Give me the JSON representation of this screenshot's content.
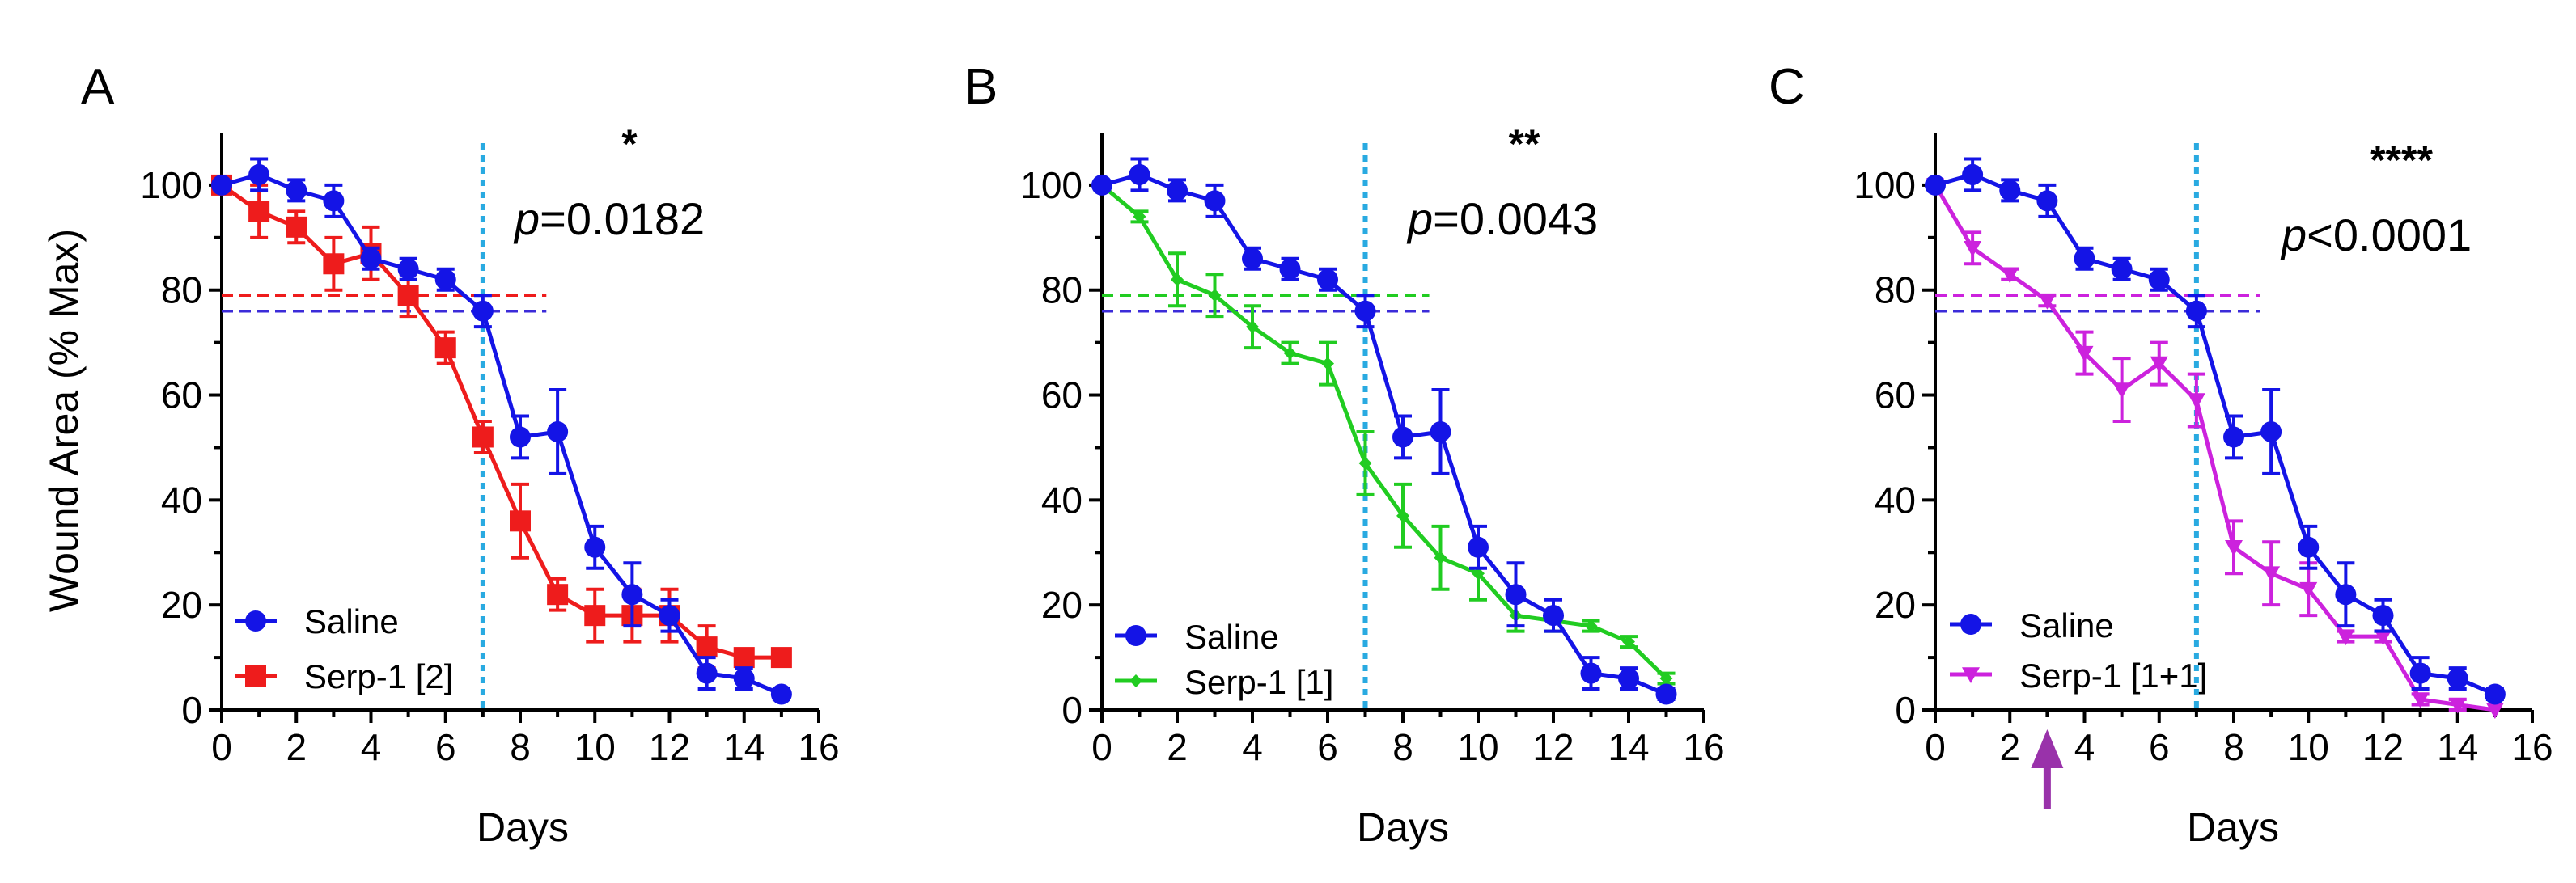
{
  "chart_data": [
    {
      "type": "line",
      "panel_label": "A",
      "xlabel": "Days",
      "ylabel": "Wound Area (% Max)",
      "xlim": [
        0,
        16
      ],
      "ylim": [
        0,
        110
      ],
      "x_ticks": [
        "0",
        "2",
        "4",
        "6",
        "8",
        "10",
        "12",
        "14",
        "16"
      ],
      "y_ticks": [
        "0",
        "20",
        "40",
        "60",
        "80",
        "100"
      ],
      "significance": "*",
      "p_prefix": "p",
      "p_value": "=0.0182",
      "vline_day": 7,
      "vline_color": "#29aae1",
      "series": [
        {
          "name": "Saline",
          "color": "#1414e6",
          "marker": "circle",
          "x": [
            0,
            1,
            2,
            3,
            4,
            5,
            6,
            7,
            8,
            9,
            10,
            11,
            12,
            13,
            14,
            15
          ],
          "values": [
            100,
            102,
            99,
            97,
            86,
            84,
            82,
            76,
            52,
            53,
            31,
            22,
            18,
            7,
            6,
            3
          ],
          "errors": [
            0,
            3,
            2,
            3,
            2,
            2,
            2,
            3,
            4,
            8,
            4,
            6,
            3,
            3,
            2,
            1
          ],
          "hline": 76
        },
        {
          "name": "Serp-1 [2]",
          "color": "#ee1c1c",
          "marker": "square",
          "x": [
            0,
            1,
            2,
            3,
            4,
            5,
            6,
            7,
            8,
            9,
            10,
            11,
            12,
            13,
            14,
            15
          ],
          "values": [
            100,
            95,
            92,
            85,
            87,
            79,
            69,
            52,
            36,
            22,
            18,
            18,
            18,
            12,
            10,
            10
          ],
          "errors": [
            0,
            5,
            3,
            5,
            5,
            4,
            3,
            3,
            7,
            3,
            5,
            5,
            5,
            4,
            1,
            1
          ],
          "hline": 79
        }
      ]
    },
    {
      "type": "line",
      "panel_label": "B",
      "xlabel": "Days",
      "ylabel": "",
      "xlim": [
        0,
        16
      ],
      "ylim": [
        0,
        110
      ],
      "x_ticks": [
        "0",
        "2",
        "4",
        "6",
        "8",
        "10",
        "12",
        "14",
        "16"
      ],
      "y_ticks": [
        "0",
        "20",
        "40",
        "60",
        "80",
        "100"
      ],
      "significance": "**",
      "p_prefix": "p",
      "p_value": "=0.0043",
      "vline_day": 7,
      "vline_color": "#29aae1",
      "series": [
        {
          "name": "Saline",
          "color": "#1414e6",
          "marker": "circle",
          "x": [
            0,
            1,
            2,
            3,
            4,
            5,
            6,
            7,
            8,
            9,
            10,
            11,
            12,
            13,
            14,
            15
          ],
          "values": [
            100,
            102,
            99,
            97,
            86,
            84,
            82,
            76,
            52,
            53,
            31,
            22,
            18,
            7,
            6,
            3
          ],
          "errors": [
            0,
            3,
            2,
            3,
            2,
            2,
            2,
            3,
            4,
            8,
            4,
            6,
            3,
            3,
            2,
            1
          ],
          "hline": 76
        },
        {
          "name": "Serp-1 [1]",
          "color": "#21cc21",
          "marker": "diamond",
          "x": [
            0,
            1,
            2,
            3,
            4,
            5,
            6,
            7,
            8,
            9,
            10,
            11,
            12,
            13,
            14,
            15
          ],
          "values": [
            100,
            94,
            82,
            79,
            73,
            68,
            66,
            47,
            37,
            29,
            26,
            18,
            17,
            16,
            13,
            6
          ],
          "errors": [
            0,
            1,
            5,
            4,
            4,
            2,
            4,
            6,
            6,
            6,
            5,
            3,
            2,
            1,
            1,
            1
          ],
          "hline": 79
        }
      ]
    },
    {
      "type": "line",
      "panel_label": "C",
      "xlabel": "Days",
      "ylabel": "",
      "xlim": [
        0,
        16
      ],
      "ylim": [
        0,
        110
      ],
      "x_ticks": [
        "0",
        "2",
        "4",
        "6",
        "8",
        "10",
        "12",
        "14",
        "16"
      ],
      "y_ticks": [
        "0",
        "20",
        "40",
        "60",
        "80",
        "100"
      ],
      "significance": "****",
      "p_prefix": "p",
      "p_value": "<0.0001",
      "vline_day": 7,
      "vline_color": "#29aae1",
      "arrow_day": 3,
      "arrow_color": "#9932aa",
      "series": [
        {
          "name": "Saline",
          "color": "#1414e6",
          "marker": "circle",
          "x": [
            0,
            1,
            2,
            3,
            4,
            5,
            6,
            7,
            8,
            9,
            10,
            11,
            12,
            13,
            14,
            15
          ],
          "values": [
            100,
            102,
            99,
            97,
            86,
            84,
            82,
            76,
            52,
            53,
            31,
            22,
            18,
            7,
            6,
            3
          ],
          "errors": [
            0,
            3,
            2,
            3,
            2,
            2,
            2,
            3,
            4,
            8,
            4,
            6,
            3,
            3,
            2,
            1
          ],
          "hline": 76
        },
        {
          "name": "Serp-1 [1+1]",
          "color": "#cc22dd",
          "marker": "triangle-down",
          "x": [
            0,
            1,
            2,
            3,
            4,
            5,
            6,
            7,
            8,
            9,
            10,
            11,
            12,
            13,
            14,
            15
          ],
          "values": [
            100,
            88,
            83,
            78,
            68,
            61,
            66,
            59,
            31,
            26,
            23,
            14,
            14,
            2,
            1,
            0
          ],
          "errors": [
            0,
            3,
            1,
            1,
            4,
            6,
            4,
            5,
            5,
            6,
            5,
            1,
            1,
            1,
            1,
            0
          ],
          "hline": 79
        }
      ]
    }
  ]
}
